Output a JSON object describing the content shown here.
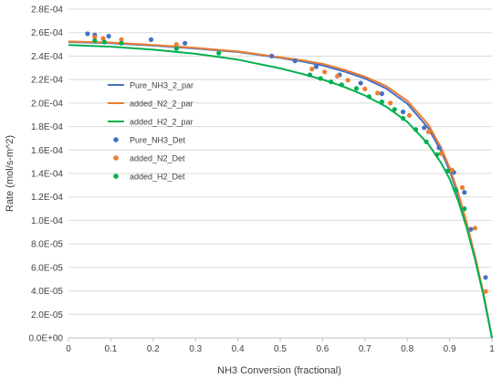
{
  "chart_data": {
    "type": "line",
    "title": "",
    "xlabel": "NH3 Conversion (fractional)",
    "ylabel": "Rate (mol/s-m^2)",
    "xlim": [
      0,
      1
    ],
    "ylim": [
      0,
      0.00028
    ],
    "x_ticks": [
      "0",
      "0.1",
      "0.2",
      "0.3",
      "0.4",
      "0.5",
      "0.6",
      "0.7",
      "0.8",
      "0.9",
      "1"
    ],
    "y_ticks": [
      "0.0E+00",
      "2.0E-05",
      "4.0E-05",
      "6.0E-05",
      "8.0E-05",
      "1.0E-04",
      "1.2E-04",
      "1.4E-04",
      "1.6E-04",
      "1.8E-04",
      "2.0E-04",
      "2.2E-04",
      "2.4E-04",
      "2.6E-04",
      "2.8E-04"
    ],
    "grid": "horizontal",
    "legend_position": "center-left",
    "series": [
      {
        "name": "Pure_NH3_2_par",
        "kind": "line",
        "color": "#4472C4",
        "x": [
          0,
          0.1,
          0.2,
          0.3,
          0.4,
          0.5,
          0.55,
          0.6,
          0.65,
          0.7,
          0.75,
          0.8,
          0.85,
          0.88,
          0.9,
          0.92,
          0.94,
          0.96,
          0.98,
          1.0
        ],
        "y": [
          0.000252,
          0.000251,
          0.000249,
          0.0002465,
          0.0002435,
          0.0002385,
          0.0002355,
          0.000232,
          0.000227,
          0.000221,
          0.0002125,
          0.0001995,
          0.0001785,
          0.000159,
          0.0001425,
          0.0001215,
          9.7e-05,
          6.9e-05,
          3.7e-05,
          0.0
        ]
      },
      {
        "name": "added_N2_2_par",
        "kind": "line",
        "color": "#ED7D31",
        "x": [
          0,
          0.1,
          0.2,
          0.3,
          0.4,
          0.5,
          0.55,
          0.6,
          0.65,
          0.7,
          0.75,
          0.8,
          0.85,
          0.88,
          0.9,
          0.92,
          0.94,
          0.96,
          0.98,
          1.0
        ],
        "y": [
          0.0002525,
          0.0002515,
          0.0002495,
          0.000247,
          0.000244,
          0.000239,
          0.0002365,
          0.0002335,
          0.0002285,
          0.0002225,
          0.0002145,
          0.000202,
          0.0001815,
          0.000162,
          0.000145,
          0.000124,
          9.85e-05,
          7e-05,
          3.8e-05,
          0.0
        ]
      },
      {
        "name": "added_H2_2_par",
        "kind": "line",
        "color": "#00B050",
        "x": [
          0,
          0.1,
          0.2,
          0.3,
          0.4,
          0.5,
          0.55,
          0.6,
          0.65,
          0.7,
          0.75,
          0.8,
          0.85,
          0.88,
          0.9,
          0.92,
          0.94,
          0.96,
          0.98,
          1.0
        ],
        "y": [
          0.0002495,
          0.000248,
          0.0002455,
          0.000242,
          0.000237,
          0.0002295,
          0.000225,
          0.00022,
          0.000214,
          0.0002065,
          0.000197,
          0.000184,
          0.000165,
          0.000149,
          0.0001355,
          0.000117,
          9.4e-05,
          6.7e-05,
          3.6e-05,
          0.0
        ]
      },
      {
        "name": "Pure_NH3_Det",
        "kind": "scatter",
        "color": "#4472C4",
        "x": [
          0.045,
          0.062,
          0.095,
          0.195,
          0.275,
          0.48,
          0.535,
          0.585,
          0.64,
          0.69,
          0.74,
          0.79,
          0.84,
          0.875,
          0.91,
          0.935,
          0.95,
          0.985
        ],
        "y": [
          0.000259,
          0.000258,
          0.000257,
          0.000254,
          0.000251,
          0.00024,
          0.000236,
          0.000231,
          0.000224,
          0.000217,
          0.000208,
          0.0001925,
          0.000179,
          0.000162,
          0.000141,
          0.000124,
          9.25e-05,
          5.15e-05
        ]
      },
      {
        "name": "added_N2_Det",
        "kind": "scatter",
        "color": "#ED7D31",
        "x": [
          0.062,
          0.082,
          0.125,
          0.255,
          0.575,
          0.605,
          0.635,
          0.66,
          0.7,
          0.73,
          0.76,
          0.805,
          0.85,
          0.88,
          0.905,
          0.93,
          0.96,
          0.985
        ],
        "y": [
          0.000256,
          0.000255,
          0.000254,
          0.00025,
          0.000229,
          0.0002265,
          0.000223,
          0.0002195,
          0.000212,
          0.0002085,
          0.0002,
          0.0001895,
          0.0001755,
          0.000157,
          0.000143,
          0.000128,
          9.35e-05,
          3.95e-05
        ]
      },
      {
        "name": "added_H2_Det",
        "kind": "scatter",
        "color": "#00B050",
        "x": [
          0.062,
          0.085,
          0.125,
          0.255,
          0.355,
          0.57,
          0.595,
          0.62,
          0.645,
          0.68,
          0.71,
          0.74,
          0.77,
          0.79,
          0.82,
          0.845,
          0.87,
          0.895,
          0.915,
          0.935
        ],
        "y": [
          0.000253,
          0.000252,
          0.000251,
          0.0002465,
          0.0002425,
          0.000224,
          0.000221,
          0.000218,
          0.0002155,
          0.0002125,
          0.0002055,
          0.000201,
          0.0001945,
          0.000187,
          0.0001775,
          0.000167,
          0.000156,
          0.000142,
          0.000126,
          0.00011
        ]
      }
    ]
  }
}
